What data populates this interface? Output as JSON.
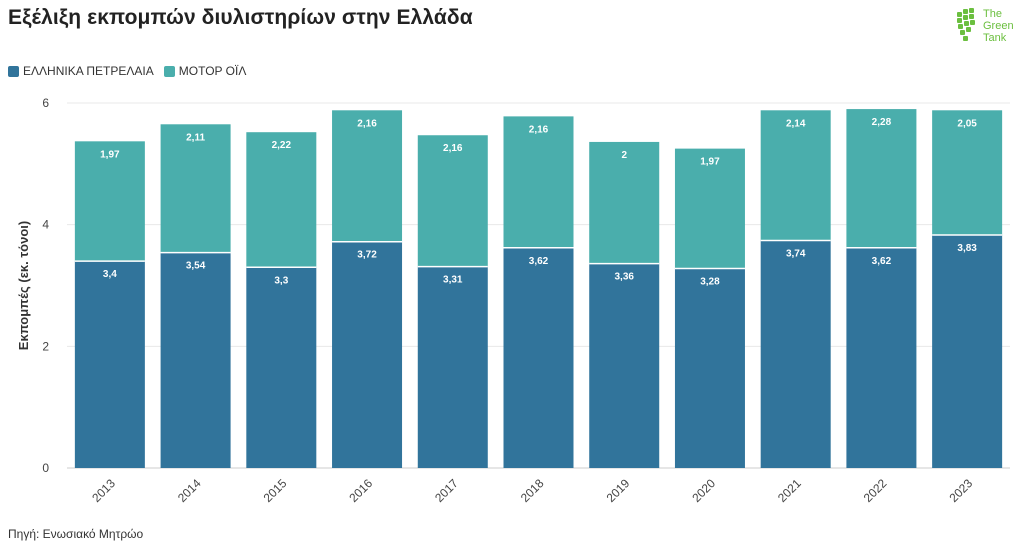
{
  "title": "Εξέλιξη εκπομπών διυλιστηρίων στην Ελλάδα",
  "logo": {
    "text_lines": [
      "The",
      "Green",
      "Tank"
    ],
    "icon": "green-tank-logo-icon"
  },
  "source": "Πηγή: Ενωσιακό Μητρώο",
  "colors": {
    "series1": "#31749b",
    "series2": "#4aaeac",
    "grid": "#e8e8e8",
    "axis_text": "#444444"
  },
  "chart_data": {
    "type": "bar",
    "stacked": true,
    "categories": [
      "2013",
      "2014",
      "2015",
      "2016",
      "2017",
      "2018",
      "2019",
      "2020",
      "2021",
      "2022",
      "2023"
    ],
    "series": [
      {
        "name": "ΕΛΛΗΝΙΚΑ ΠΕΤΡΕΛΑΙΑ",
        "values": [
          3.4,
          3.54,
          3.3,
          3.72,
          3.31,
          3.62,
          3.36,
          3.28,
          3.74,
          3.62,
          3.83
        ],
        "labels": [
          "3,4",
          "3,54",
          "3,3",
          "3,72",
          "3,31",
          "3,62",
          "3,36",
          "3,28",
          "3,74",
          "3,62",
          "3,83"
        ]
      },
      {
        "name": "ΜΟΤΟΡ ΟΪΛ",
        "values": [
          1.97,
          2.11,
          2.22,
          2.16,
          2.16,
          2.16,
          2,
          1.97,
          2.14,
          2.28,
          2.05
        ],
        "labels": [
          "1,97",
          "2,11",
          "2,22",
          "2,16",
          "2,16",
          "2,16",
          "2",
          "1,97",
          "2,14",
          "2,28",
          "2,05"
        ]
      }
    ],
    "ylabel": "Εκπομπές (εκ. τόνοι)",
    "xlabel": "",
    "ylim": [
      0,
      6
    ],
    "yticks": [
      0,
      2,
      4,
      6
    ],
    "grid": true,
    "legend": "top-left"
  }
}
